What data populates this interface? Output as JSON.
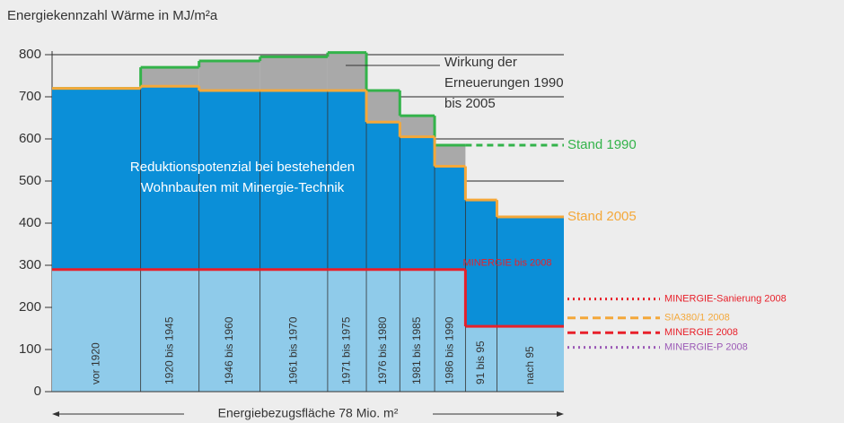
{
  "chart_data": {
    "type": "bar",
    "title": "Energiekennzahl Wärme in MJ/m²a",
    "x_label": "Energiebezugsfläche 78 Mio. m²",
    "categories": [
      "vor 1920",
      "1920 bis 1945",
      "1946 bis 1960",
      "1961 bis 1970",
      "1971 bis 1975",
      "1976 bis 1980",
      "1981 bis 1985",
      "1986 bis 1990",
      "91 bis 95",
      "nach 95"
    ],
    "widths": [
      13.5,
      8.9,
      9.3,
      10.3,
      5.9,
      5.1,
      5.3,
      4.7,
      4.8,
      10.2
    ],
    "xlim": [
      0,
      78
    ],
    "series": [
      {
        "name": "Stand 1990",
        "color": "#33b34a",
        "values": [
          720,
          770,
          785,
          795,
          805,
          715,
          655,
          585,
          null,
          null
        ]
      },
      {
        "name": "Stand 2005",
        "color": "#f4a83a",
        "values": [
          720,
          725,
          715,
          715,
          715,
          640,
          605,
          535,
          455,
          415
        ]
      },
      {
        "name": "MINERGIE bis 2008",
        "color": "#e8202a",
        "values": [
          290,
          290,
          290,
          290,
          290,
          290,
          290,
          290,
          155,
          155
        ]
      }
    ],
    "fill_colors": {
      "renovation": "#a9a9a9",
      "potential": "#0b8fd8",
      "minergie": "#8fcbea"
    },
    "ylim": [
      0,
      800
    ],
    "yticks": [
      0,
      100,
      200,
      300,
      400,
      500,
      600,
      700,
      800
    ],
    "grid": true,
    "annotations": [
      "Wirkung der Erneuerungen 1990 bis 2005",
      "Reduktionspotenzial bei bestehenden Wohnbauten mit Minergie-Technik"
    ],
    "reference_lines": [
      {
        "label": "MINERGIE-Sanierung 2008",
        "value": 220,
        "color": "#e8202a",
        "style": "dotted"
      },
      {
        "label": "SIA380/1 2008",
        "value": 175,
        "color": "#f4a83a",
        "style": "dashed"
      },
      {
        "label": "MINERGIE 2008",
        "value": 140,
        "color": "#e8202a",
        "style": "dashed"
      },
      {
        "label": "MINERGIE-P 2008",
        "value": 105,
        "color": "#9b59b6",
        "style": "dotted"
      }
    ]
  }
}
